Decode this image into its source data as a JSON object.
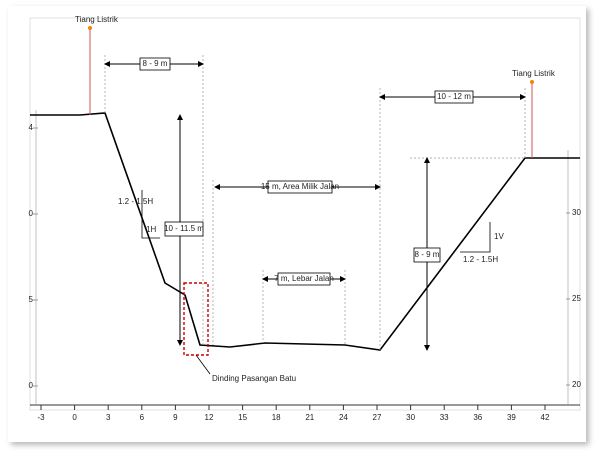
{
  "labels": {
    "pole_left": "Tiang Listrik",
    "pole_right": "Tiang Listrik",
    "width_left": "8 - 9 m",
    "width_right": "10 - 12 m",
    "slope_left": "1.2 - 1.5H",
    "slope_left_v": "1H",
    "height_left": "10 - 11.5 m",
    "row_width": "15 m, Area Milik Jalan",
    "road_width": "7 m, Lebar Jalan",
    "height_right": "8 - 9 m",
    "slope_right_v": "1V",
    "slope_right": "1.2 - 1.5H",
    "wall": "Dinding Pasangan Batu"
  },
  "x_axis": [
    "-3",
    "0",
    "3",
    "6",
    "9",
    "12",
    "15",
    "18",
    "21",
    "24",
    "27",
    "30",
    "33",
    "36",
    "39",
    "42"
  ],
  "left_axis": [
    "4",
    "0",
    "5",
    "0"
  ],
  "right_axis": [
    "30",
    "25",
    "20"
  ]
}
